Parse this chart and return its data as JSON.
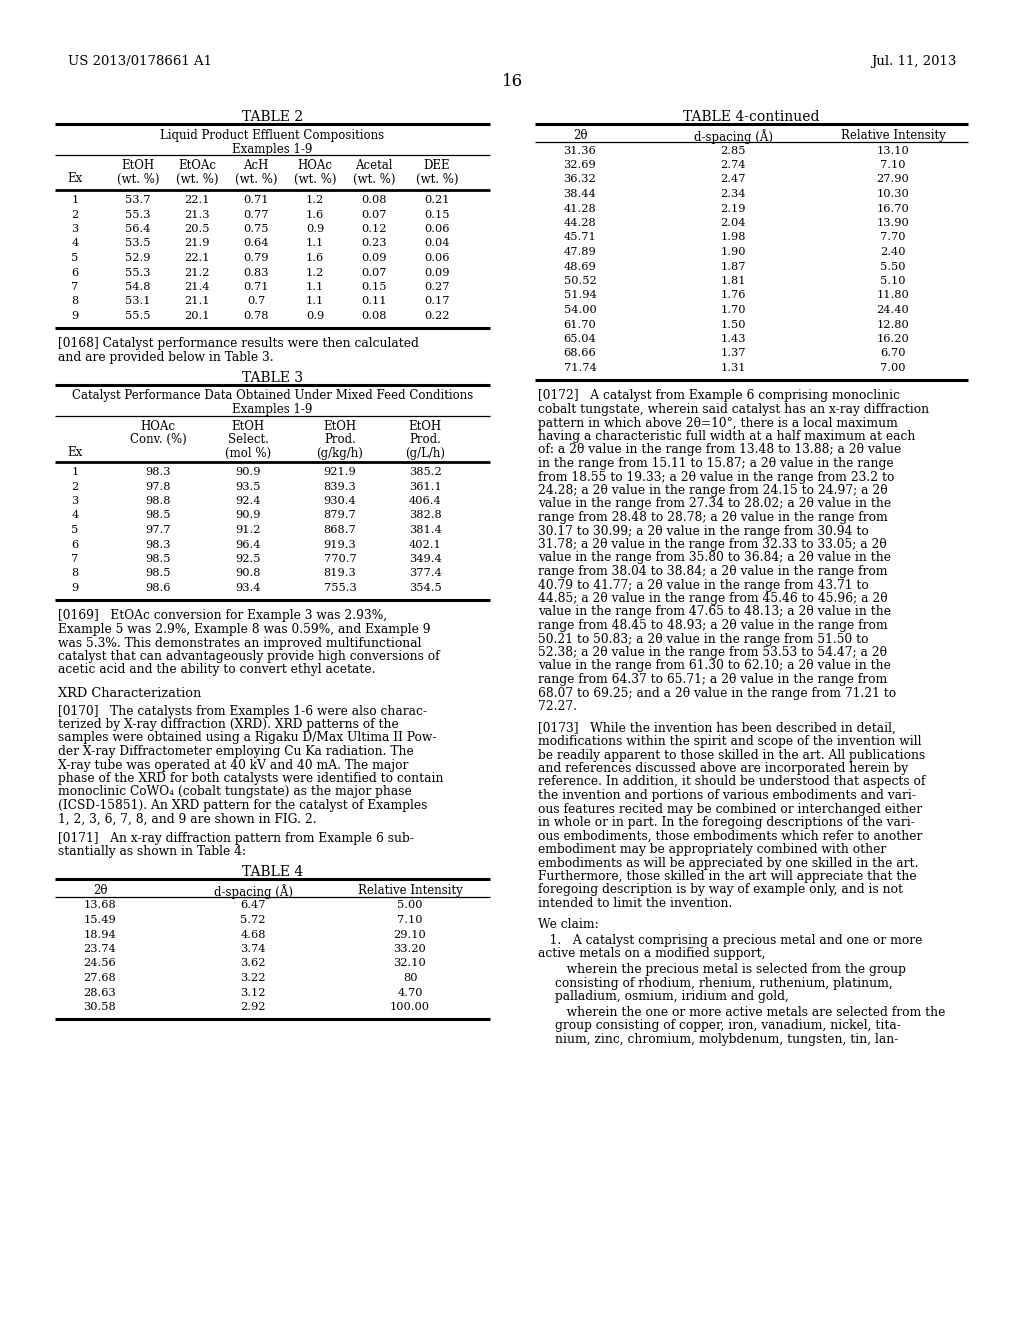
{
  "page_number": "16",
  "patent_number": "US 2013/0178661 A1",
  "patent_date": "Jul. 11, 2013",
  "background_color": "#ffffff",
  "table2_title": "TABLE 2",
  "table2_subtitle1": "Liquid Product Effluent Compositions",
  "table2_subtitle2": "Examples 1-9",
  "table2_col_headers_line1": [
    "",
    "EtOH",
    "EtOAc",
    "AcH",
    "HOAc",
    "Acetal",
    "DEE"
  ],
  "table2_col_headers_line2": [
    "Ex",
    "(wt. %)",
    "(wt. %)",
    "(wt. %)",
    "(wt. %)",
    "(wt. %)",
    "(wt. %)"
  ],
  "table2_data": [
    [
      "1",
      "53.7",
      "22.1",
      "0.71",
      "1.2",
      "0.08",
      "0.21"
    ],
    [
      "2",
      "55.3",
      "21.3",
      "0.77",
      "1.6",
      "0.07",
      "0.15"
    ],
    [
      "3",
      "56.4",
      "20.5",
      "0.75",
      "0.9",
      "0.12",
      "0.06"
    ],
    [
      "4",
      "53.5",
      "21.9",
      "0.64",
      "1.1",
      "0.23",
      "0.04"
    ],
    [
      "5",
      "52.9",
      "22.1",
      "0.79",
      "1.6",
      "0.09",
      "0.06"
    ],
    [
      "6",
      "55.3",
      "21.2",
      "0.83",
      "1.2",
      "0.07",
      "0.09"
    ],
    [
      "7",
      "54.8",
      "21.4",
      "0.71",
      "1.1",
      "0.15",
      "0.27"
    ],
    [
      "8",
      "53.1",
      "21.1",
      "0.7",
      "1.1",
      "0.11",
      "0.17"
    ],
    [
      "9",
      "55.5",
      "20.1",
      "0.78",
      "0.9",
      "0.08",
      "0.22"
    ]
  ],
  "para168": "[0168]   Catalyst performance results were then calculated and are provided below in Table 3.",
  "table3_title": "TABLE 3",
  "table3_subtitle1": "Catalyst Performance Data Obtained Under Mixed Feed Conditions",
  "table3_subtitle2": "Examples 1-9",
  "table3_col_headers": [
    [
      "",
      "HOAc",
      "EtOH",
      "EtOH",
      "EtOH"
    ],
    [
      "",
      "Conv. (%)",
      "Select.",
      "Prod.",
      "Prod."
    ],
    [
      "Ex",
      "",
      "(mol %)",
      "(g/kg/h)",
      "(g/L/h)"
    ]
  ],
  "table3_data": [
    [
      "1",
      "98.3",
      "90.9",
      "921.9",
      "385.2"
    ],
    [
      "2",
      "97.8",
      "93.5",
      "839.3",
      "361.1"
    ],
    [
      "3",
      "98.8",
      "92.4",
      "930.4",
      "406.4"
    ],
    [
      "4",
      "98.5",
      "90.9",
      "879.7",
      "382.8"
    ],
    [
      "5",
      "97.7",
      "91.2",
      "868.7",
      "381.4"
    ],
    [
      "6",
      "98.3",
      "96.4",
      "919.3",
      "402.1"
    ],
    [
      "7",
      "98.5",
      "92.5",
      "770.7",
      "349.4"
    ],
    [
      "8",
      "98.5",
      "90.8",
      "819.3",
      "377.4"
    ],
    [
      "9",
      "98.6",
      "93.4",
      "755.3",
      "354.5"
    ]
  ],
  "para169_parts": [
    "[0169]   EtOAc conversion for Example 3 was 2.93%,",
    "Example 5 was 2.9%, Example 8 was 0.59%, and Example 9",
    "was 5.3%. This demonstrates an improved multifunctional",
    "catalyst that can advantageously provide high conversions of",
    "acetic acid and the ability to convert ethyl acetate."
  ],
  "section_xrd": "XRD Characterization",
  "para170_parts": [
    "[0170]   The catalysts from Examples 1-6 were also charac-",
    "terized by X-ray diffraction (XRD). XRD patterns of the",
    "samples were obtained using a Rigaku D/Max Ultima II Pow-",
    "der X-ray Diffractometer employing Cu Ka radiation. The",
    "X-ray tube was operated at 40 kV and 40 mA. The major",
    "phase of the XRD for both catalysts were identified to contain",
    "monoclinic CoWO₄ (cobalt tungstate) as the major phase",
    "(ICSD-15851). An XRD pattern for the catalyst of Examples",
    "1, 2, 3, 6, 7, 8, and 9 are shown in FIG. 2."
  ],
  "para171_parts": [
    "[0171]   An x-ray diffraction pattern from Example 6 sub-",
    "stantially as shown in Table 4:"
  ],
  "table4_title": "TABLE 4",
  "table4_col_headers": [
    "2θ",
    "d-spacing (Å)",
    "Relative Intensity"
  ],
  "table4_data": [
    [
      "13.68",
      "6.47",
      "5.00"
    ],
    [
      "15.49",
      "5.72",
      "7.10"
    ],
    [
      "18.94",
      "4.68",
      "29.10"
    ],
    [
      "23.74",
      "3.74",
      "33.20"
    ],
    [
      "24.56",
      "3.62",
      "32.10"
    ],
    [
      "27.68",
      "3.22",
      "80"
    ],
    [
      "28.63",
      "3.12",
      "4.70"
    ],
    [
      "30.58",
      "2.92",
      "100.00"
    ]
  ],
  "table4cont_title": "TABLE 4-continued",
  "table4cont_col_headers": [
    "2θ",
    "d-spacing (Å)",
    "Relative Intensity"
  ],
  "table4cont_data": [
    [
      "31.36",
      "2.85",
      "13.10"
    ],
    [
      "32.69",
      "2.74",
      "7.10"
    ],
    [
      "36.32",
      "2.47",
      "27.90"
    ],
    [
      "38.44",
      "2.34",
      "10.30"
    ],
    [
      "41.28",
      "2.19",
      "16.70"
    ],
    [
      "44.28",
      "2.04",
      "13.90"
    ],
    [
      "45.71",
      "1.98",
      "7.70"
    ],
    [
      "47.89",
      "1.90",
      "2.40"
    ],
    [
      "48.69",
      "1.87",
      "5.50"
    ],
    [
      "50.52",
      "1.81",
      "5.10"
    ],
    [
      "51.94",
      "1.76",
      "11.80"
    ],
    [
      "54.00",
      "1.70",
      "24.40"
    ],
    [
      "61.70",
      "1.50",
      "12.80"
    ],
    [
      "65.04",
      "1.43",
      "16.20"
    ],
    [
      "68.66",
      "1.37",
      "6.70"
    ],
    [
      "71.74",
      "1.31",
      "7.00"
    ]
  ],
  "para172_parts": [
    "[0172]   A catalyst from Example 6 comprising monoclinic",
    "cobalt tungstate, wherein said catalyst has an x-ray diffraction",
    "pattern in which above 2θ=10°, there is a local maximum",
    "having a characteristic full width at a half maximum at each",
    "of: a 2θ value in the range from 13.48 to 13.88; a 2θ value",
    "in the range from 15.11 to 15.87; a 2θ value in the range",
    "from 18.55 to 19.33; a 2θ value in the range from 23.2 to",
    "24.28; a 2θ value in the range from 24.15 to 24.97; a 2θ",
    "value in the range from 27.34 to 28.02; a 2θ value in the",
    "range from 28.48 to 28.78; a 2θ value in the range from",
    "30.17 to 30.99; a 2θ value in the range from 30.94 to",
    "31.78; a 2θ value in the range from 32.33 to 33.05; a 2θ",
    "value in the range from 35.80 to 36.84; a 2θ value in the",
    "range from 38.04 to 38.84; a 2θ value in the range from",
    "40.79 to 41.77; a 2θ value in the range from 43.71 to",
    "44.85; a 2θ value in the range from 45.46 to 45.96; a 2θ",
    "value in the range from 47.65 to 48.13; a 2θ value in the",
    "range from 48.45 to 48.93; a 2θ value in the range from",
    "50.21 to 50.83; a 2θ value in the range from 51.50 to",
    "52.38; a 2θ value in the range from 53.53 to 54.47; a 2θ",
    "value in the range from 61.30 to 62.10; a 2θ value in the",
    "range from 64.37 to 65.71; a 2θ value in the range from",
    "68.07 to 69.25; and a 2θ value in the range from 71.21 to",
    "72.27."
  ],
  "para173_parts": [
    "[0173]   While the invention has been described in detail,",
    "modifications within the spirit and scope of the invention will",
    "be readily apparent to those skilled in the art. All publications",
    "and references discussed above are incorporated herein by",
    "reference. In addition, it should be understood that aspects of",
    "the invention and portions of various embodiments and vari-",
    "ous features recited may be combined or interchanged either",
    "in whole or in part. In the foregoing descriptions of the vari-",
    "ous embodiments, those embodiments which refer to another",
    "embodiment may be appropriately combined with other",
    "embodiments as will be appreciated by one skilled in the art.",
    "Furthermore, those skilled in the art will appreciate that the",
    "foregoing description is by way of example only, and is not",
    "intended to limit the invention."
  ],
  "claims_header": "We claim:",
  "claim1_line1": "   1.   A catalyst comprising a precious metal and one or more",
  "claim1_line2": "active metals on a modified support,",
  "claim1_indent1_parts": [
    "   wherein the precious metal is selected from the group",
    "consisting of rhodium, rhenium, ruthenium, platinum,",
    "palladium, osmium, iridium and gold,"
  ],
  "claim1_indent2_parts": [
    "   wherein the one or more active metals are selected from the",
    "group consisting of copper, iron, vanadium, nickel, tita-",
    "nium, zinc, chromium, molybdenum, tungsten, tin, lan-"
  ]
}
